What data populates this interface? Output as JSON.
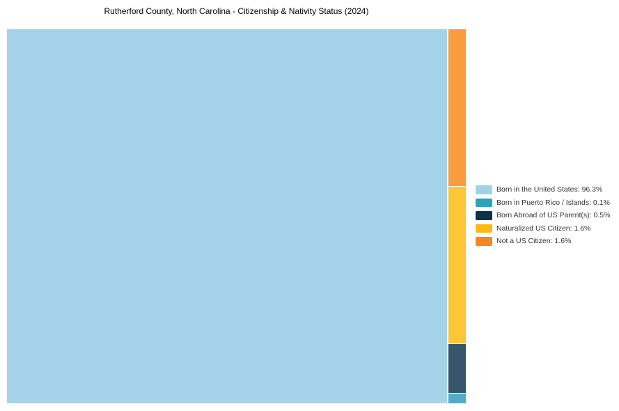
{
  "chart_data": {
    "type": "treemap",
    "title": "Rutherford County, North Carolina - Citizenship & Nativity Status (2024)",
    "unit": "%",
    "legend_position": "right-center",
    "background_color": "#ffffff",
    "series": [
      {
        "label": "Born in the United States",
        "value": 96.3,
        "legend_label": "Born in the United States: 96.3%",
        "cell_color": "#A5D3EA",
        "legend_color": "#A3D1E8"
      },
      {
        "label": "Born in Puerto Rico / Islands",
        "value": 0.1,
        "legend_label": "Born in Puerto Rico / Islands: 0.1%",
        "cell_color": "#4BAFC5",
        "legend_color": "#2BA3BD"
      },
      {
        "label": "Born Abroad of US Parent(s)",
        "value": 0.5,
        "legend_label": "Born Abroad of US Parent(s): 0.5%",
        "cell_color": "#35566B",
        "legend_color": "#0E3349"
      },
      {
        "label": "Naturalized US Citizen",
        "value": 1.6,
        "legend_label": "Naturalized US Citizen: 1.6%",
        "cell_color": "#FDC636",
        "legend_color": "#FCB813"
      },
      {
        "label": "Not a US Citizen",
        "value": 1.6,
        "legend_label": "Not a US Citizen: 1.6%",
        "cell_color": "#F99C3B",
        "legend_color": "#F6861F"
      }
    ]
  }
}
